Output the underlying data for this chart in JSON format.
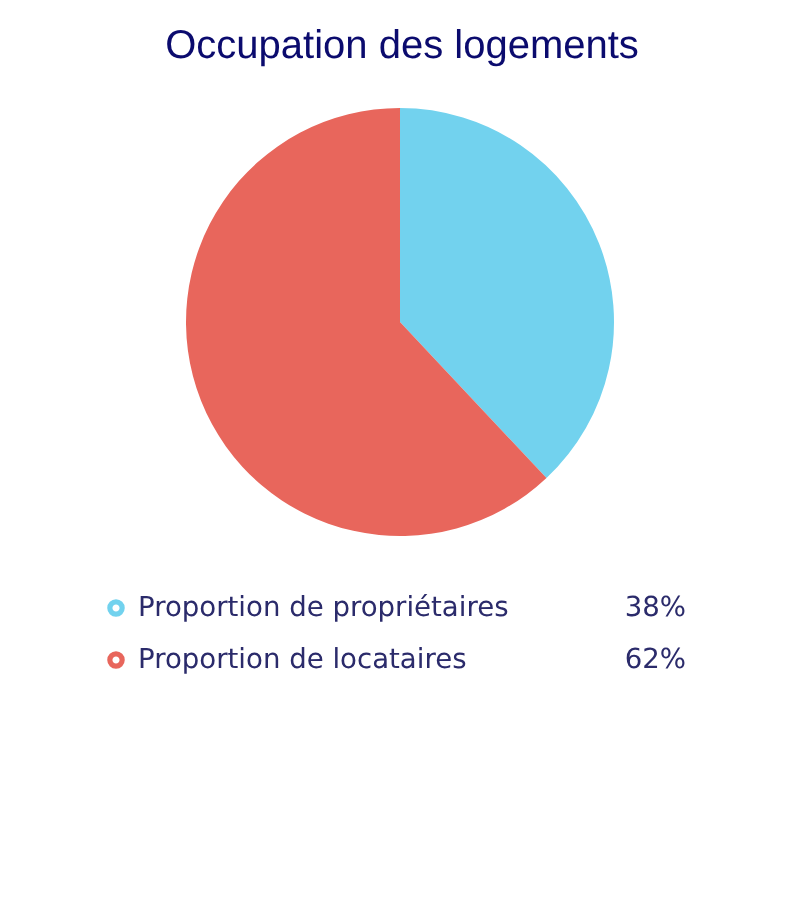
{
  "chart_data": {
    "type": "pie",
    "title": "Occupation des logements",
    "categories": [
      "Proportion de propriétaires",
      "Proportion de locataires"
    ],
    "values": [
      38,
      62
    ],
    "colors": [
      "#72d2ee",
      "#e8665c"
    ],
    "value_labels": [
      "38%",
      "62%"
    ],
    "legend": "bottom"
  }
}
